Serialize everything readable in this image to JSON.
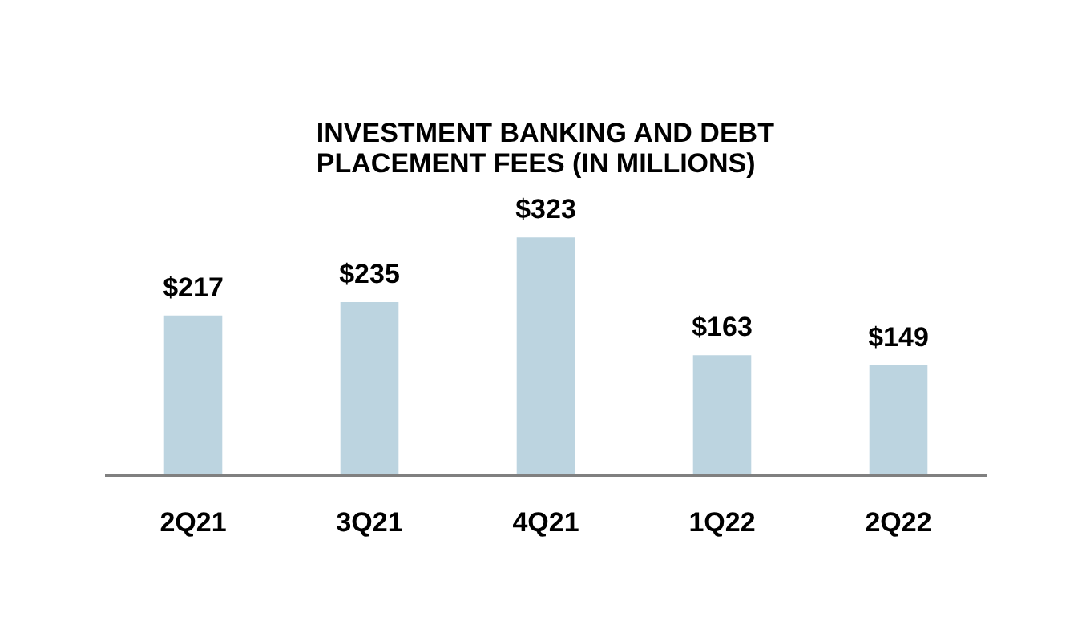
{
  "chart_data": {
    "type": "bar",
    "title": "INVESTMENT BANKING AND DEBT\nPLACEMENT FEES (IN MILLIONS)",
    "categories": [
      "2Q21",
      "3Q21",
      "4Q21",
      "1Q22",
      "2Q22"
    ],
    "values": [
      217,
      235,
      323,
      163,
      149
    ],
    "value_labels": [
      "$217",
      "$235",
      "$323",
      "$163",
      "$149"
    ],
    "color": "#bcd4e0",
    "tick_labels": "x"
  }
}
